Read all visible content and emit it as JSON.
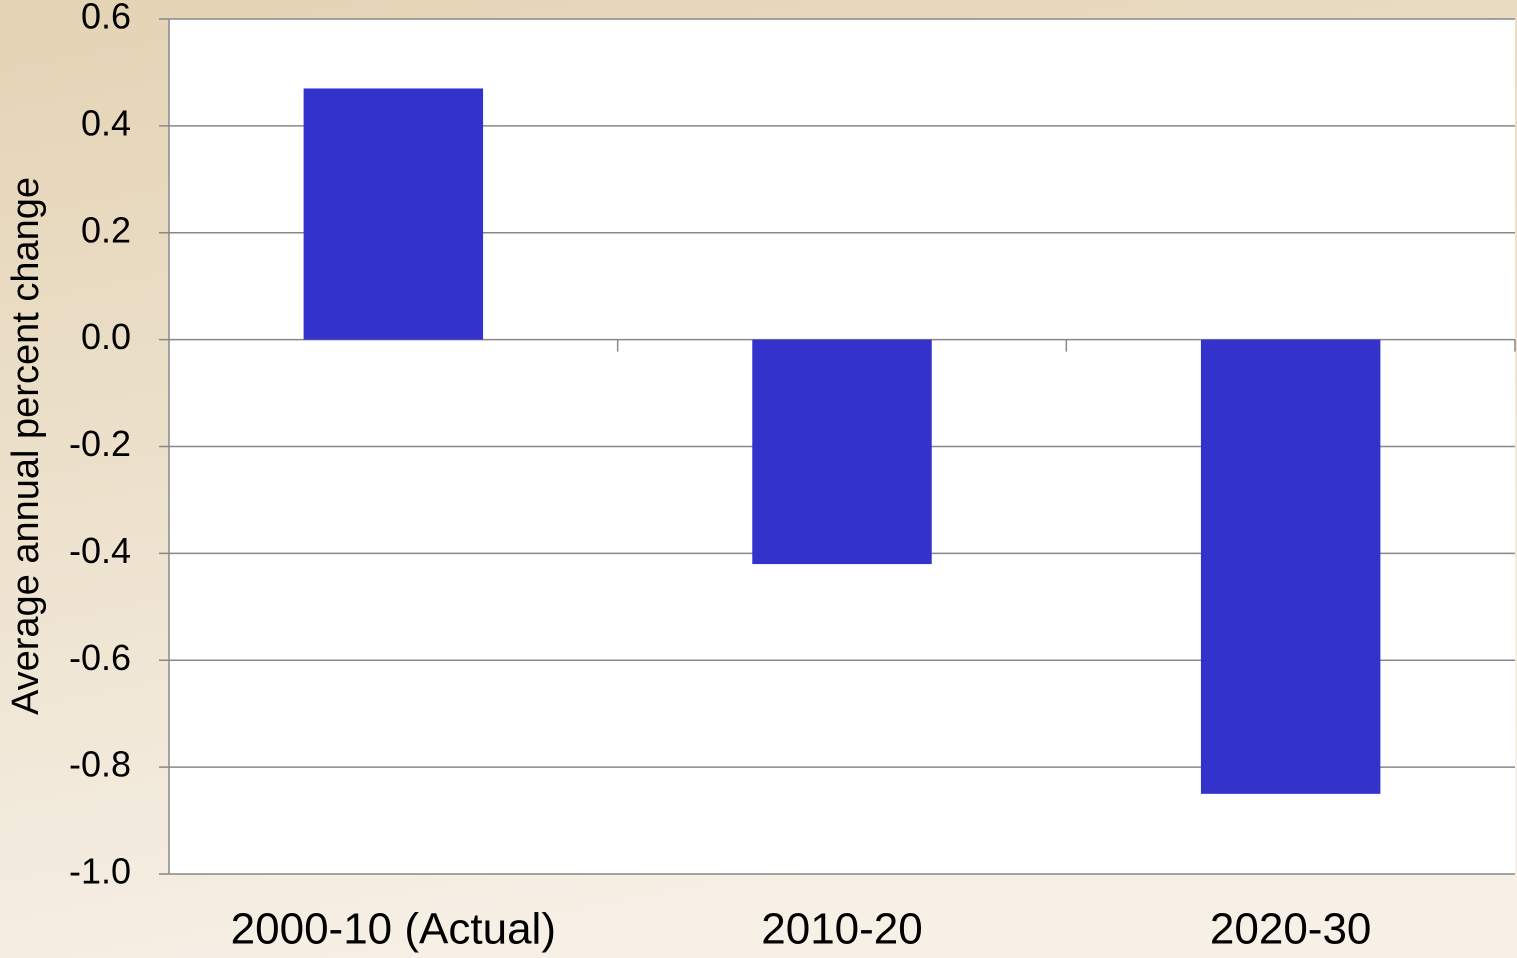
{
  "chart_data": {
    "type": "bar",
    "y_axis_label": "Average annual percent change",
    "categories": [
      "2000-10 (Actual)",
      "2010-20",
      "2020-30"
    ],
    "values": [
      0.47,
      -0.42,
      -0.85
    ],
    "color": "#3333cc",
    "ylim": [
      -1.0,
      0.6
    ],
    "yticks": [
      0.6,
      0.4,
      0.2,
      {
        "value": 0,
        "label": "0.0"
      },
      -0.2,
      -0.4,
      -0.6,
      -0.8,
      {
        "value": -1.0,
        "label": "-1.0"
      }
    ],
    "grid": true
  }
}
